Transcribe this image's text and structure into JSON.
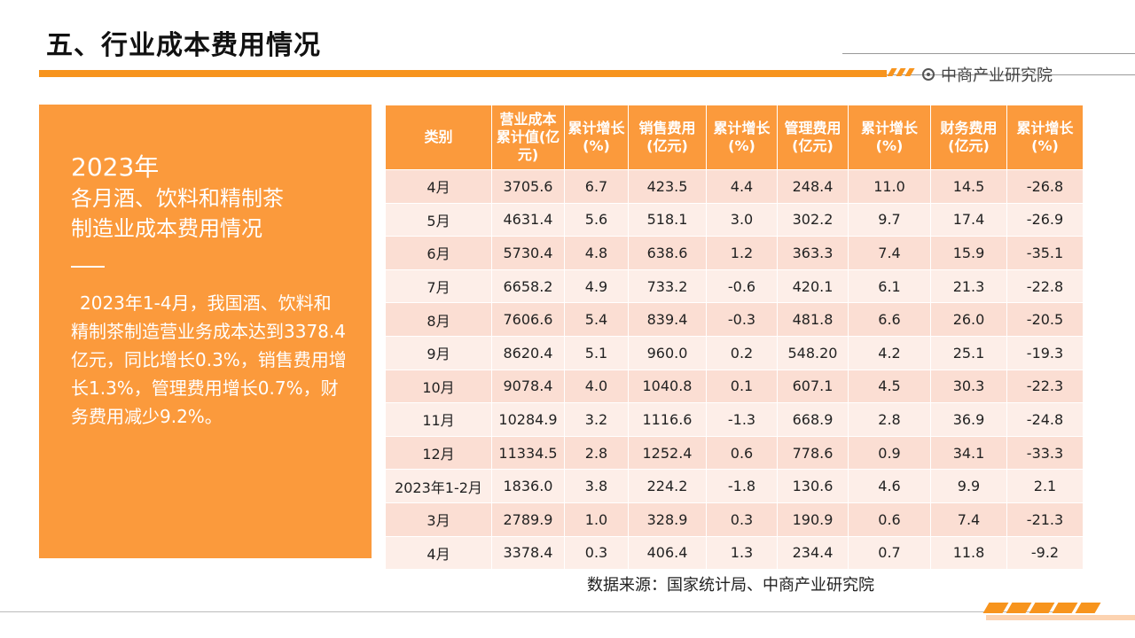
{
  "page": {
    "title": "五、行业成本费用情况"
  },
  "brand": {
    "name": "中商产业研究院"
  },
  "panel": {
    "year": "2023年",
    "heading_line1": "各月酒、饮料和精制茶",
    "heading_line2": "制造业成本费用情况",
    "body": "2023年1-4月，我国酒、饮料和精制茶制造营业务成本达到3378.4亿元，同比增长0.3%，销售费用增长1.3%，管理费用增长0.7%，财务费用减少9.2%。"
  },
  "table": {
    "headers": [
      "类别",
      "营业成本累计值(亿元)",
      "累计增长(%)",
      "销售费用(亿元)",
      "累计增长(%)",
      "管理费用(亿元)",
      "累计增长(%)",
      "财务费用(亿元)",
      "累计增长 (%)"
    ],
    "rows": [
      [
        "4月",
        "3705.6",
        "6.7",
        "423.5",
        "4.4",
        "248.4",
        "11.0",
        "14.5",
        "-26.8"
      ],
      [
        "5月",
        "4631.4",
        "5.6",
        "518.1",
        "3.0",
        "302.2",
        "9.7",
        "17.4",
        "-26.9"
      ],
      [
        "6月",
        "5730.4",
        "4.8",
        "638.6",
        "1.2",
        "363.3",
        "7.4",
        "15.9",
        "-35.1"
      ],
      [
        "7月",
        "6658.2",
        "4.9",
        "733.2",
        "-0.6",
        "420.1",
        "6.1",
        "21.3",
        "-22.8"
      ],
      [
        "8月",
        "7606.6",
        "5.4",
        "839.4",
        "-0.3",
        "481.8",
        "6.6",
        "26.0",
        "-20.5"
      ],
      [
        "9月",
        "8620.4",
        "5.1",
        "960.0",
        "0.2",
        "548.20",
        "4.2",
        "25.1",
        "-19.3"
      ],
      [
        "10月",
        "9078.4",
        "4.0",
        "1040.8",
        "0.1",
        "607.1",
        "4.5",
        "30.3",
        "-22.3"
      ],
      [
        "11月",
        "10284.9",
        "3.2",
        "1116.6",
        "-1.3",
        "668.9",
        "2.8",
        "36.9",
        "-24.8"
      ],
      [
        "12月",
        "11334.5",
        "2.8",
        "1252.4",
        "0.6",
        "778.6",
        "0.9",
        "34.1",
        "-33.3"
      ],
      [
        "2023年1-2月",
        "1836.0",
        "3.8",
        "224.2",
        "-1.8",
        "130.6",
        "4.6",
        "9.9",
        "2.1"
      ],
      [
        "3月",
        "2789.9",
        "1.0",
        "328.9",
        "0.3",
        "190.9",
        "0.6",
        "7.4",
        "-21.3"
      ],
      [
        "4月",
        "3378.4",
        "0.3",
        "406.4",
        "1.3",
        "234.4",
        "0.7",
        "11.8",
        "-9.2"
      ]
    ]
  },
  "source": {
    "text": "数据来源：国家统计局、中商产业研究院"
  },
  "colors": {
    "accent": "#fb9a3c",
    "row_odd": "#fbded3",
    "row_even": "#fdeee8"
  }
}
